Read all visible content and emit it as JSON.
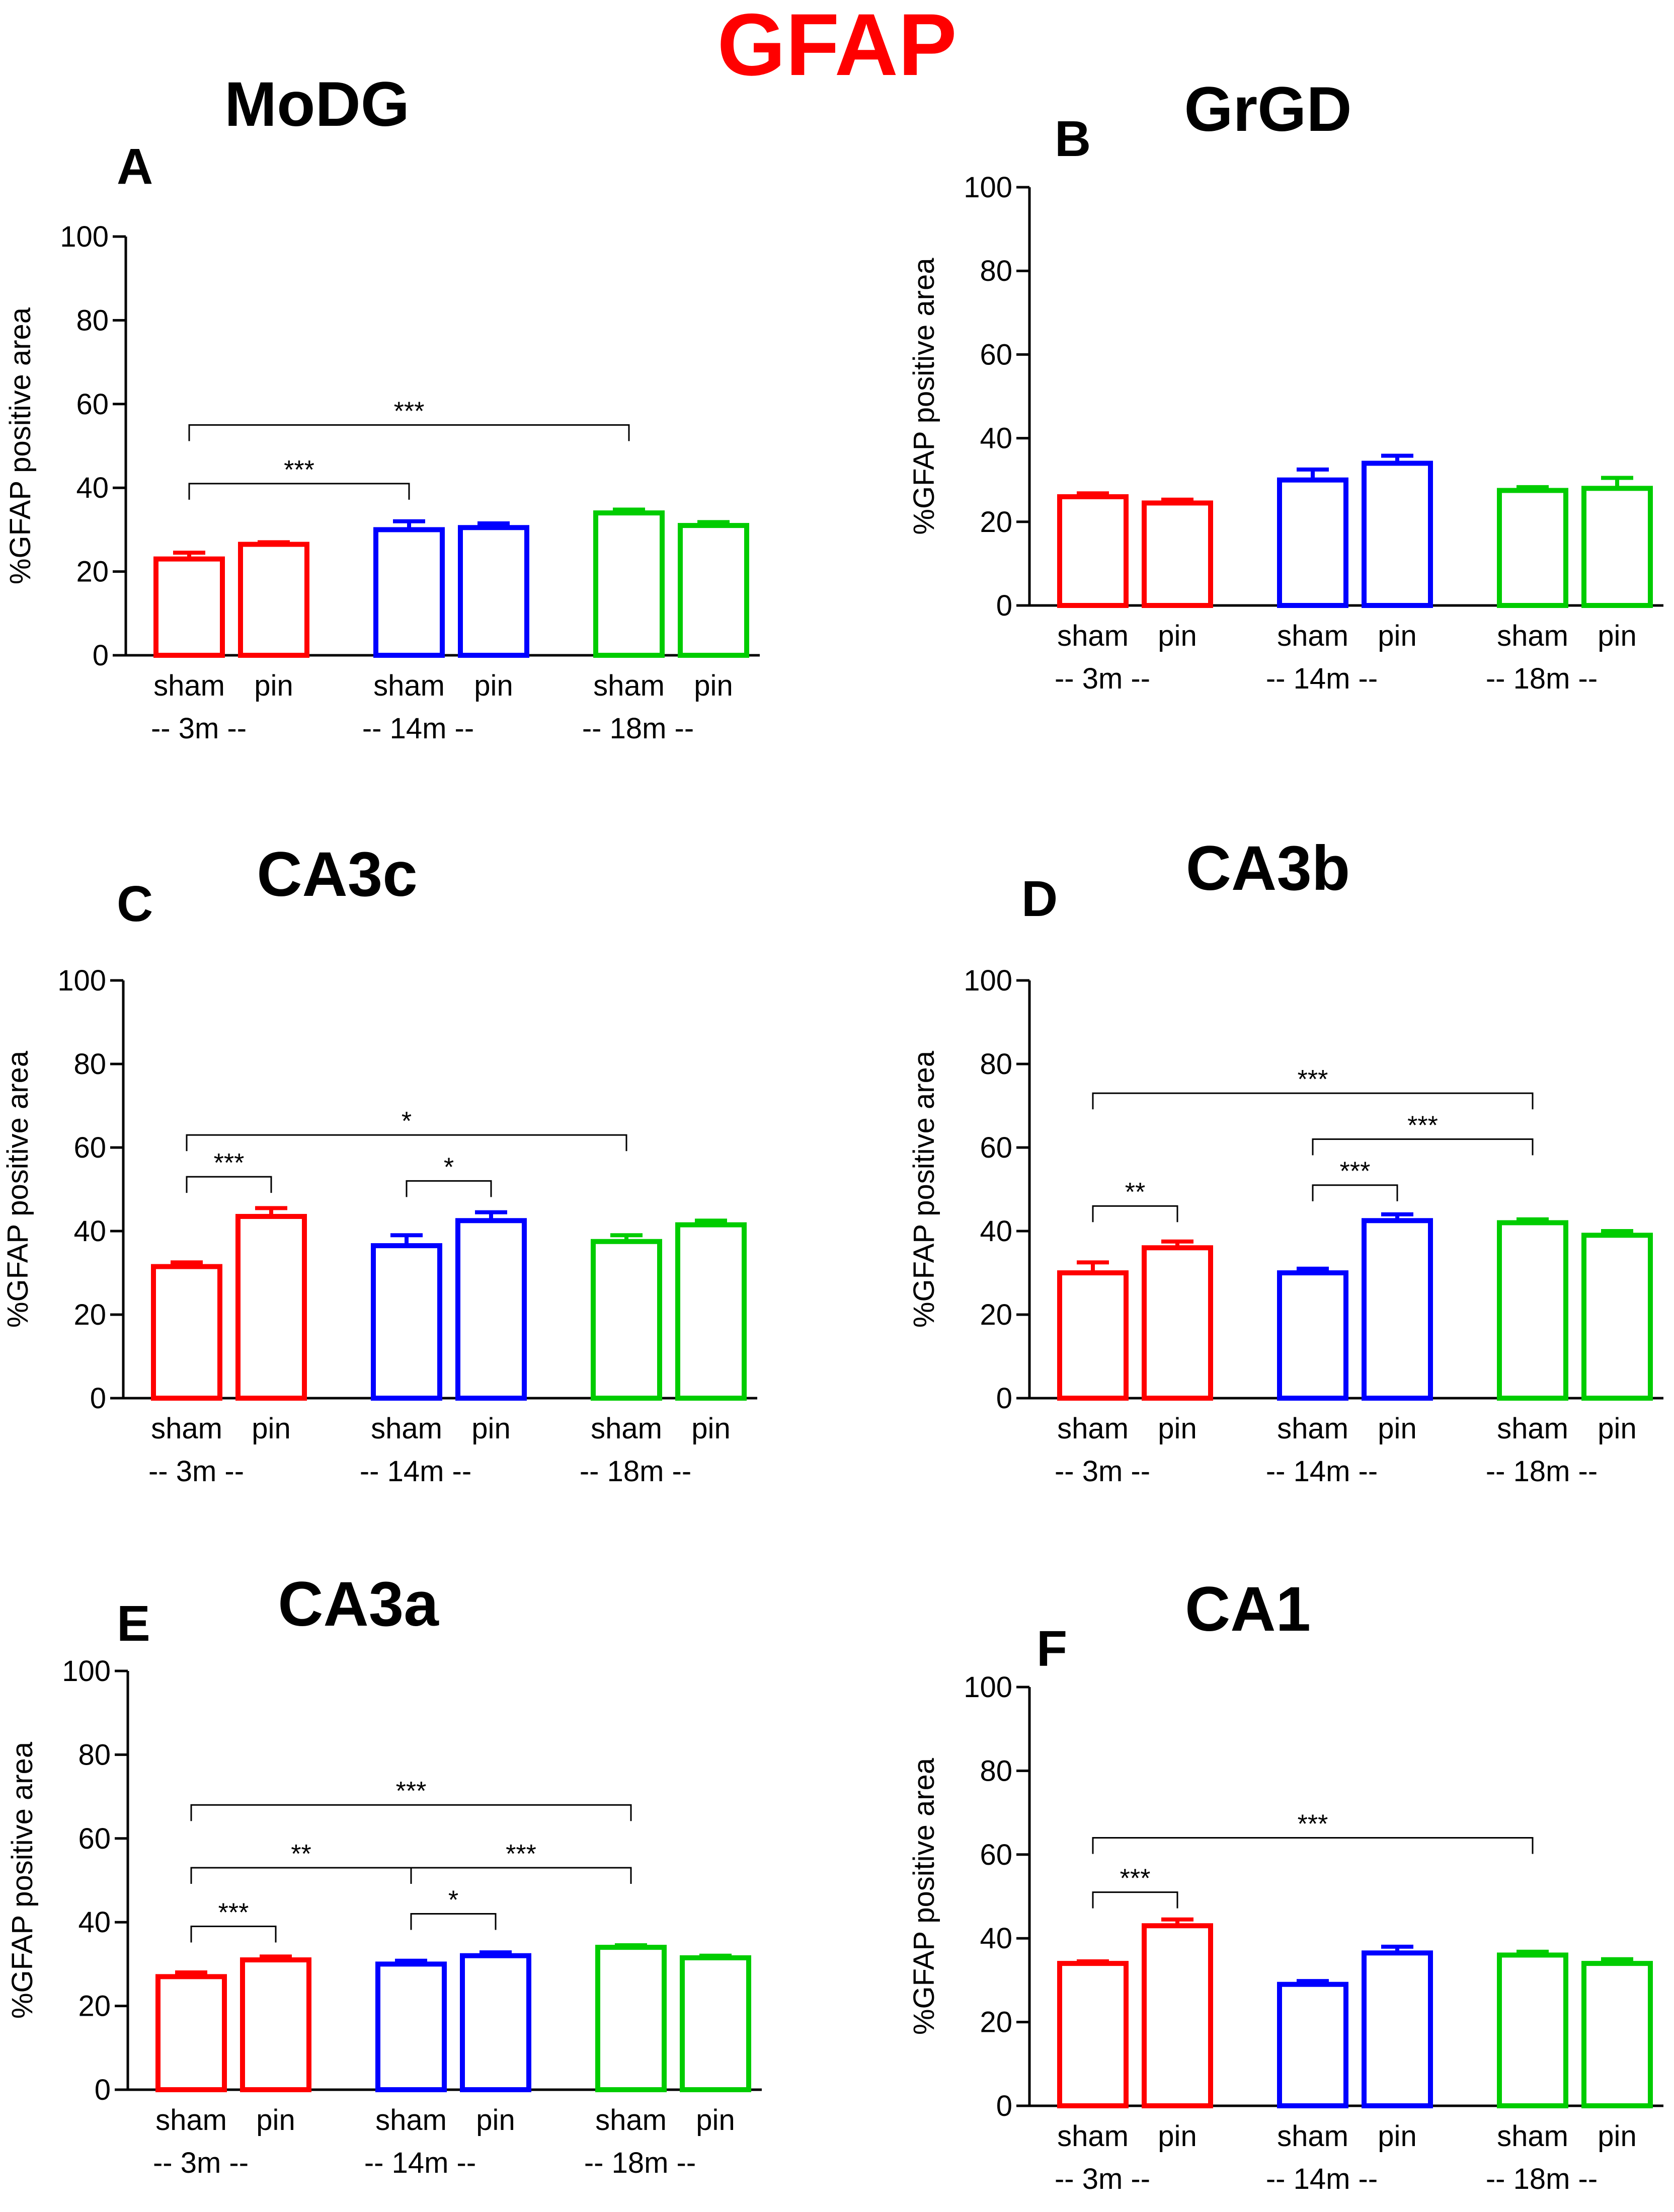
{
  "figure_title": "GFAP",
  "colors": {
    "title": "#ff0000",
    "axis": "#000000",
    "3m": "#ff0000",
    "14m": "#0000ff",
    "18m": "#00cc00"
  },
  "chart_data": [
    {
      "panel": "A",
      "title": "MoDG",
      "type": "bar",
      "ylabel": "%GFAP positive area",
      "ylim": [
        0,
        100
      ],
      "yticks": [
        0,
        20,
        40,
        60,
        80,
        100
      ],
      "groups": [
        "-- 3m --",
        "-- 14m --",
        "-- 18m --"
      ],
      "categories": [
        "sham",
        "pin",
        "sham",
        "pin",
        "sham",
        "pin"
      ],
      "values": [
        23,
        26.5,
        30,
        30.5,
        34,
        31
      ],
      "errors": [
        1.5,
        0.5,
        2,
        1,
        0.8,
        0.8
      ],
      "significance": [
        {
          "from": 0,
          "to": 4,
          "label": "***",
          "level": 55
        },
        {
          "from": 0,
          "to": 2,
          "label": "***",
          "level": 41
        }
      ]
    },
    {
      "panel": "B",
      "title": "GrGD",
      "type": "bar",
      "ylabel": "%GFAP positive area",
      "ylim": [
        0,
        100
      ],
      "yticks": [
        0,
        20,
        40,
        60,
        80,
        100
      ],
      "groups": [
        "-- 3m --",
        "-- 14m --",
        "-- 18m --"
      ],
      "categories": [
        "sham",
        "pin",
        "sham",
        "pin",
        "sham",
        "pin"
      ],
      "values": [
        26,
        24.5,
        30,
        34,
        27.5,
        28
      ],
      "errors": [
        0.8,
        0.8,
        2.5,
        1.8,
        0.8,
        2.5
      ],
      "significance": []
    },
    {
      "panel": "C",
      "title": "CA3c",
      "type": "bar",
      "ylabel": "%GFAP positive area",
      "ylim": [
        0,
        100
      ],
      "yticks": [
        0,
        20,
        40,
        60,
        80,
        100
      ],
      "groups": [
        "-- 3m --",
        "-- 14m --",
        "-- 18m --"
      ],
      "categories": [
        "sham",
        "pin",
        "sham",
        "pin",
        "sham",
        "pin"
      ],
      "values": [
        31.5,
        43.5,
        36.5,
        42.5,
        37.5,
        41.5
      ],
      "errors": [
        1,
        2,
        2.5,
        2,
        1.5,
        1
      ],
      "significance": [
        {
          "from": 0,
          "to": 4,
          "label": "*",
          "level": 63
        },
        {
          "from": 0,
          "to": 1,
          "label": "***",
          "level": 53
        },
        {
          "from": 2,
          "to": 3,
          "label": "*",
          "level": 52
        }
      ]
    },
    {
      "panel": "D",
      "title": "CA3b",
      "type": "bar",
      "ylabel": "%GFAP positive area",
      "ylim": [
        0,
        100
      ],
      "yticks": [
        0,
        20,
        40,
        60,
        80,
        100
      ],
      "groups": [
        "-- 3m --",
        "-- 14m --",
        "-- 18m --"
      ],
      "categories": [
        "sham",
        "pin",
        "sham",
        "pin",
        "sham",
        "pin"
      ],
      "values": [
        30,
        36,
        30,
        42.5,
        42,
        39
      ],
      "errors": [
        2.5,
        1.5,
        1,
        1.5,
        0.8,
        1
      ],
      "significance": [
        {
          "from": 0,
          "to": 4,
          "label": "***",
          "level": 73
        },
        {
          "from": 2,
          "to": 4,
          "label": "***",
          "level": 62
        },
        {
          "from": 2,
          "to": 3,
          "label": "***",
          "level": 51
        },
        {
          "from": 0,
          "to": 1,
          "label": "**",
          "level": 46
        }
      ]
    },
    {
      "panel": "E",
      "title": "CA3a",
      "type": "bar",
      "ylabel": "%GFAP positive area",
      "ylim": [
        0,
        100
      ],
      "yticks": [
        0,
        20,
        40,
        60,
        80,
        100
      ],
      "groups": [
        "-- 3m --",
        "-- 14m --",
        "-- 18m --"
      ],
      "categories": [
        "sham",
        "pin",
        "sham",
        "pin",
        "sham",
        "pin"
      ],
      "values": [
        27,
        31,
        30,
        32,
        34,
        31.5
      ],
      "errors": [
        1,
        0.8,
        0.8,
        0.8,
        0.5,
        0.5
      ],
      "significance": [
        {
          "from": 0,
          "to": 4,
          "label": "***",
          "level": 68
        },
        {
          "from": 0,
          "to": 2,
          "label": "**",
          "level": 53
        },
        {
          "from": 2,
          "to": 4,
          "label": "***",
          "level": 53
        },
        {
          "from": 0,
          "to": 1,
          "label": "***",
          "level": 39
        },
        {
          "from": 2,
          "to": 3,
          "label": "*",
          "level": 42
        }
      ]
    },
    {
      "panel": "F",
      "title": "CA1",
      "type": "bar",
      "ylabel": "%GFAP positive area",
      "ylim": [
        0,
        100
      ],
      "yticks": [
        0,
        20,
        40,
        60,
        80,
        100
      ],
      "groups": [
        "-- 3m --",
        "-- 14m --",
        "-- 18m --"
      ],
      "categories": [
        "sham",
        "pin",
        "sham",
        "pin",
        "sham",
        "pin"
      ],
      "values": [
        34,
        43,
        29,
        36.5,
        36,
        34
      ],
      "errors": [
        0.5,
        1.5,
        0.8,
        1.5,
        0.8,
        1
      ],
      "significance": [
        {
          "from": 0,
          "to": 4,
          "label": "***",
          "level": 64
        },
        {
          "from": 0,
          "to": 1,
          "label": "***",
          "level": 51
        }
      ]
    }
  ]
}
